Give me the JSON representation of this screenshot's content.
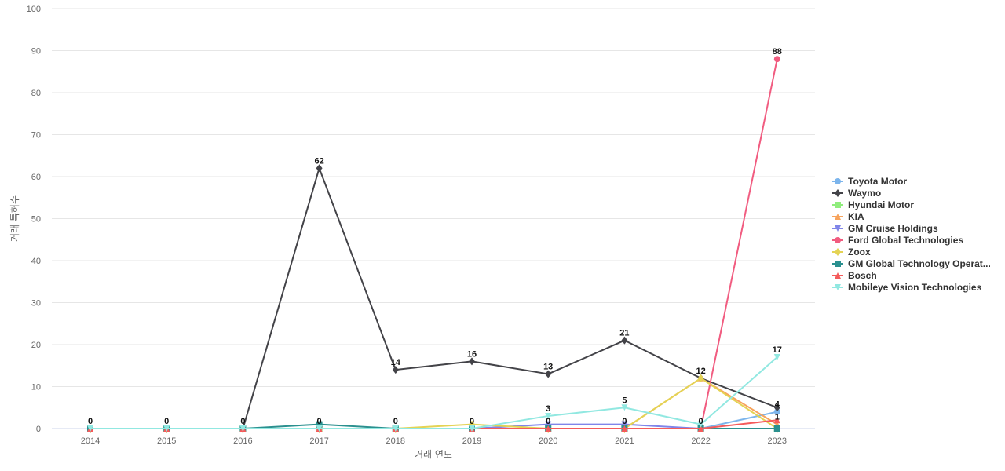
{
  "chart_data": {
    "type": "line",
    "title": "",
    "xlabel": "거래 연도",
    "ylabel": "거래 특허수",
    "x": [
      "2014",
      "2015",
      "2016",
      "2017",
      "2018",
      "2019",
      "2020",
      "2021",
      "2022",
      "2023"
    ],
    "ylim": [
      0,
      100
    ],
    "yticks": [
      "0",
      "10",
      "20",
      "30",
      "40",
      "50",
      "60",
      "70",
      "80",
      "90",
      "100"
    ],
    "grid": true,
    "legend_position": "right",
    "series": [
      {
        "name": "Toyota Motor",
        "color": "#7cb5ec",
        "marker": "circle",
        "values": [
          0,
          0,
          0,
          0,
          0,
          0,
          0,
          0,
          0,
          4
        ]
      },
      {
        "name": "Waymo",
        "color": "#434348",
        "marker": "diamond",
        "values": [
          0,
          0,
          0,
          62,
          14,
          16,
          13,
          21,
          12,
          5
        ]
      },
      {
        "name": "Hyundai Motor",
        "color": "#90ed7d",
        "marker": "square",
        "values": [
          0,
          0,
          0,
          0,
          0,
          0,
          0,
          0,
          0,
          0
        ]
      },
      {
        "name": "KIA",
        "color": "#f7a35c",
        "marker": "triangle",
        "values": [
          0,
          0,
          0,
          0,
          0,
          0,
          0,
          0,
          12,
          1
        ]
      },
      {
        "name": "GM Cruise Holdings",
        "color": "#8085e9",
        "marker": "triangle-down",
        "values": [
          0,
          0,
          0,
          0,
          0,
          0,
          1,
          1,
          0,
          0
        ]
      },
      {
        "name": "Ford Global Technologies",
        "color": "#f15c80",
        "marker": "circle",
        "values": [
          0,
          0,
          0,
          0,
          0,
          0,
          0,
          0,
          0,
          88
        ]
      },
      {
        "name": "Zoox",
        "color": "#e4d354",
        "marker": "diamond",
        "values": [
          0,
          0,
          0,
          0,
          0,
          1,
          0,
          0,
          12,
          0
        ]
      },
      {
        "name": "GM Global Technology Operat...",
        "color": "#2b908f",
        "marker": "square",
        "values": [
          0,
          0,
          0,
          1,
          0,
          0,
          0,
          0,
          0,
          0
        ]
      },
      {
        "name": "Bosch",
        "color": "#f45b5b",
        "marker": "triangle",
        "values": [
          0,
          0,
          0,
          0,
          0,
          0,
          0,
          0,
          0,
          2
        ]
      },
      {
        "name": "Mobileye Vision Technologies",
        "color": "#91e8e1",
        "marker": "triangle-down",
        "values": [
          0,
          0,
          0,
          0,
          0,
          0,
          3,
          5,
          1,
          17
        ]
      }
    ],
    "data_labels": [
      {
        "x": "2014",
        "text": "0",
        "series": "Waymo"
      },
      {
        "x": "2015",
        "text": "0",
        "series": "Waymo"
      },
      {
        "x": "2016",
        "text": "0",
        "series": "Waymo"
      },
      {
        "x": "2017",
        "text": "62",
        "series": "Waymo"
      },
      {
        "x": "2017",
        "text": "0",
        "series": "Toyota Motor"
      },
      {
        "x": "2018",
        "text": "14",
        "series": "Waymo"
      },
      {
        "x": "2018",
        "text": "0",
        "series": "Toyota Motor"
      },
      {
        "x": "2019",
        "text": "16",
        "series": "Waymo"
      },
      {
        "x": "2019",
        "text": "0",
        "series": "Toyota Motor"
      },
      {
        "x": "2020",
        "text": "13",
        "series": "Waymo"
      },
      {
        "x": "2020",
        "text": "3",
        "series": "Mobileye Vision Technologies"
      },
      {
        "x": "2020",
        "text": "0",
        "series": "Toyota Motor"
      },
      {
        "x": "2021",
        "text": "21",
        "series": "Waymo"
      },
      {
        "x": "2021",
        "text": "5",
        "series": "Mobileye Vision Technologies"
      },
      {
        "x": "2021",
        "text": "0",
        "series": "Toyota Motor"
      },
      {
        "x": "2022",
        "text": "12",
        "series": "Waymo"
      },
      {
        "x": "2022",
        "text": "0",
        "series": "Toyota Motor"
      },
      {
        "x": "2023",
        "text": "88",
        "series": "Ford Global Technologies"
      },
      {
        "x": "2023",
        "text": "17",
        "series": "Mobileye Vision Technologies"
      },
      {
        "x": "2023",
        "text": "4",
        "series": "Toyota Motor"
      },
      {
        "x": "2023",
        "text": "1",
        "series": "KIA"
      }
    ]
  }
}
